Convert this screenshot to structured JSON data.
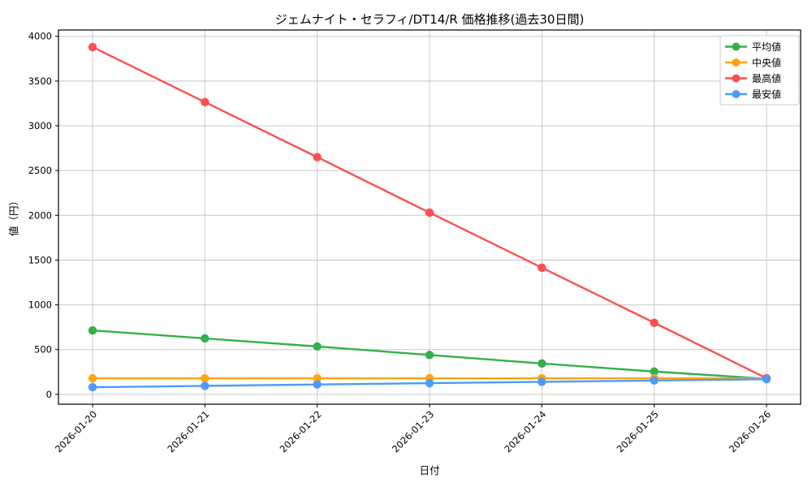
{
  "chart_data": {
    "type": "line",
    "title": "ジェムナイト・セラフィ/DT14/R 価格推移(過去30日間)",
    "xlabel": "日付",
    "ylabel": "値（円）",
    "x": [
      "2026-01-20",
      "2026-01-21",
      "2026-01-22",
      "2026-01-23",
      "2026-01-24",
      "2026-01-25",
      "2026-01-26"
    ],
    "yticks": [
      0,
      500,
      1000,
      1500,
      2000,
      2500,
      3000,
      3500,
      4000
    ],
    "ylim": [
      0,
      4000
    ],
    "grid": true,
    "legend_position": "upper right",
    "series": [
      {
        "name": "平均値",
        "color": "#34b04a",
        "values": [
          715,
          625,
          535,
          440,
          345,
          255,
          175
        ]
      },
      {
        "name": "中央値",
        "color": "#ffa40d",
        "values": [
          180,
          180,
          180,
          180,
          180,
          180,
          180
        ]
      },
      {
        "name": "最高値",
        "color": "#fc4f4f",
        "values": [
          3880,
          3265,
          2650,
          2030,
          1415,
          800,
          180
        ]
      },
      {
        "name": "最安値",
        "color": "#4c9bfc",
        "values": [
          80,
          95,
          110,
          125,
          140,
          155,
          170
        ]
      }
    ],
    "colors": {
      "grid": "#c8c8c8",
      "axis": "#000000",
      "legend_border": "#cccccc",
      "background": "#ffffff"
    }
  }
}
